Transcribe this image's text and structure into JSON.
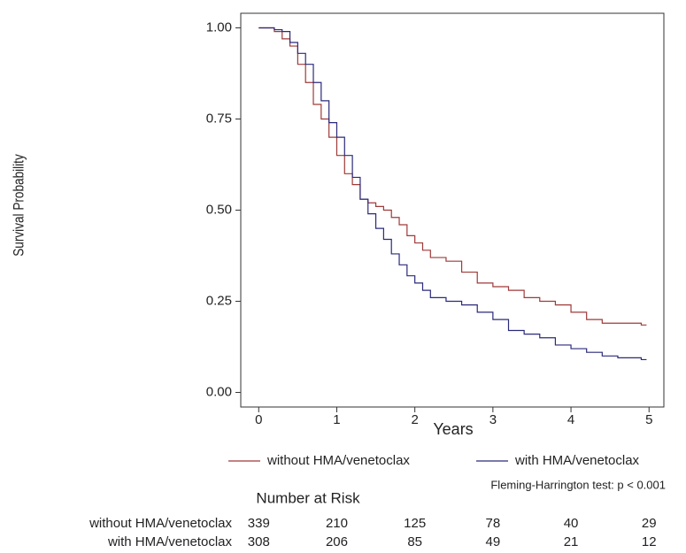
{
  "chart_data": {
    "type": "step",
    "x_label": "Years",
    "y_label": "Survival Probability",
    "x": [
      0,
      0.2,
      0.3,
      0.4,
      0.5,
      0.6,
      0.7,
      0.8,
      0.9,
      1.0,
      1.1,
      1.2,
      1.3,
      1.4,
      1.5,
      1.6,
      1.7,
      1.8,
      1.9,
      2.0,
      2.1,
      2.2,
      2.4,
      2.6,
      2.8,
      3.0,
      3.2,
      3.4,
      3.6,
      3.8,
      4.0,
      4.2,
      4.4,
      4.6,
      4.9
    ],
    "series": [
      {
        "name": "without HMA/venetoclax",
        "color": "#9e3a38",
        "values": [
          1.0,
          0.99,
          0.97,
          0.95,
          0.9,
          0.85,
          0.79,
          0.75,
          0.7,
          0.65,
          0.6,
          0.57,
          0.53,
          0.52,
          0.51,
          0.5,
          0.48,
          0.46,
          0.43,
          0.41,
          0.39,
          0.37,
          0.36,
          0.33,
          0.3,
          0.29,
          0.28,
          0.26,
          0.25,
          0.24,
          0.22,
          0.2,
          0.19,
          0.19,
          0.185
        ]
      },
      {
        "name": "with HMA/venetoclax",
        "color": "#2a2a7a",
        "values": [
          1.0,
          0.995,
          0.99,
          0.96,
          0.93,
          0.9,
          0.85,
          0.8,
          0.74,
          0.7,
          0.65,
          0.59,
          0.53,
          0.49,
          0.45,
          0.42,
          0.38,
          0.35,
          0.32,
          0.3,
          0.28,
          0.26,
          0.25,
          0.24,
          0.22,
          0.2,
          0.17,
          0.16,
          0.15,
          0.13,
          0.12,
          0.11,
          0.1,
          0.095,
          0.09
        ]
      }
    ],
    "xlim": [
      -0.23,
      5.19
    ],
    "ylim": [
      -0.04,
      1.04
    ],
    "xticks": [
      0,
      1,
      2,
      3,
      4,
      5
    ],
    "yticks": [
      {
        "value": 0,
        "label": "0.00"
      },
      {
        "value": 0.25,
        "label": "0.25"
      },
      {
        "value": 0.5,
        "label": "0.50"
      },
      {
        "value": 0.75,
        "label": "0.75"
      },
      {
        "value": 1,
        "label": "1.00"
      }
    ],
    "annotation": "Fleming-Harrington test:  p < 0.001",
    "risk_table": {
      "title": "Number at Risk",
      "counts": [
        [
          339,
          210,
          125,
          78,
          40,
          29
        ],
        [
          308,
          206,
          85,
          49,
          21,
          12
        ]
      ]
    }
  }
}
